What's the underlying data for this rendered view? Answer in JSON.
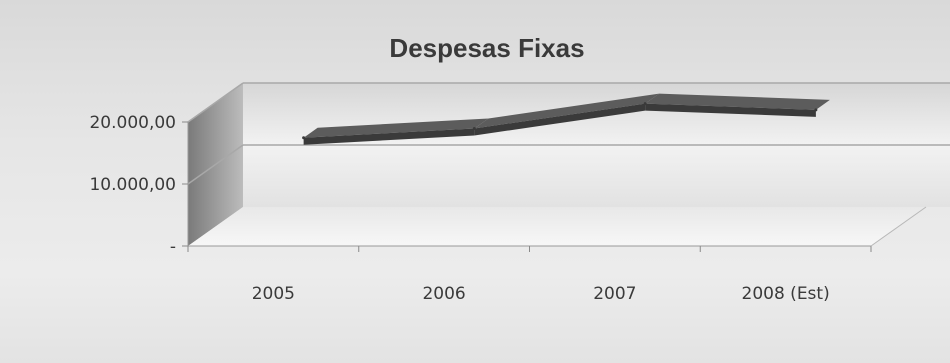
{
  "chart_data": {
    "type": "line",
    "title": "Despesas Fixas",
    "categories": [
      "2005",
      "2006",
      "2007",
      "2008 (Est)"
    ],
    "series": [
      {
        "values": [
          14000,
          15500,
          19500,
          18500
        ]
      }
    ],
    "y_ticks": [
      "-",
      "10.000,00",
      "20.000,00"
    ],
    "y_tick_values": [
      0,
      10000,
      20000
    ],
    "ylim": [
      0,
      20000
    ],
    "grid": true,
    "legend": "none",
    "three_d": true,
    "line_color": "#3a3a3a",
    "wall_color": "#e9e9e9",
    "floor_color": "#f4f4f4"
  }
}
